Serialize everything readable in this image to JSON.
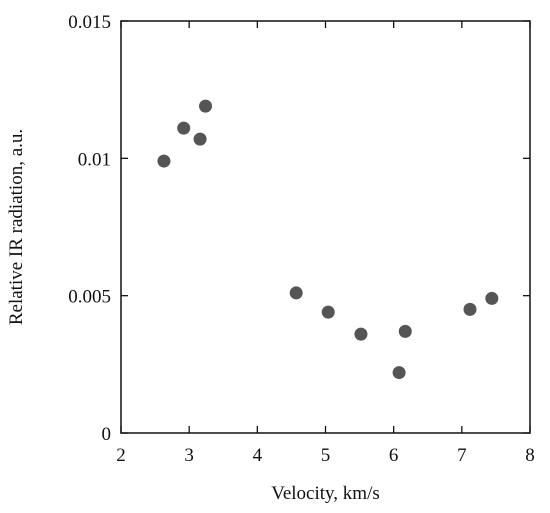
{
  "chart_data": {
    "type": "scatter",
    "title": "",
    "xlabel": "Velocity, km/s",
    "ylabel": "Relative IR radiation, a.u.",
    "xlim": [
      2,
      8
    ],
    "ylim": [
      0,
      0.015
    ],
    "xticks": [
      2,
      3,
      4,
      5,
      6,
      7,
      8
    ],
    "yticks": [
      0,
      0.005,
      0.01,
      0.015
    ],
    "xtick_labels": [
      "2",
      "3",
      "4",
      "5",
      "6",
      "7",
      "8"
    ],
    "ytick_labels": [
      "0",
      "0.005",
      "0.01",
      "0.015"
    ],
    "grid": false,
    "marker_color": "#555555",
    "points": [
      {
        "x": 2.63,
        "y": 0.0099
      },
      {
        "x": 2.92,
        "y": 0.0111
      },
      {
        "x": 3.16,
        "y": 0.0107
      },
      {
        "x": 3.24,
        "y": 0.0119
      },
      {
        "x": 4.57,
        "y": 0.0051
      },
      {
        "x": 5.04,
        "y": 0.0044
      },
      {
        "x": 5.52,
        "y": 0.0036
      },
      {
        "x": 6.08,
        "y": 0.0022
      },
      {
        "x": 6.17,
        "y": 0.0037
      },
      {
        "x": 7.12,
        "y": 0.0045
      },
      {
        "x": 7.44,
        "y": 0.0049
      }
    ]
  }
}
